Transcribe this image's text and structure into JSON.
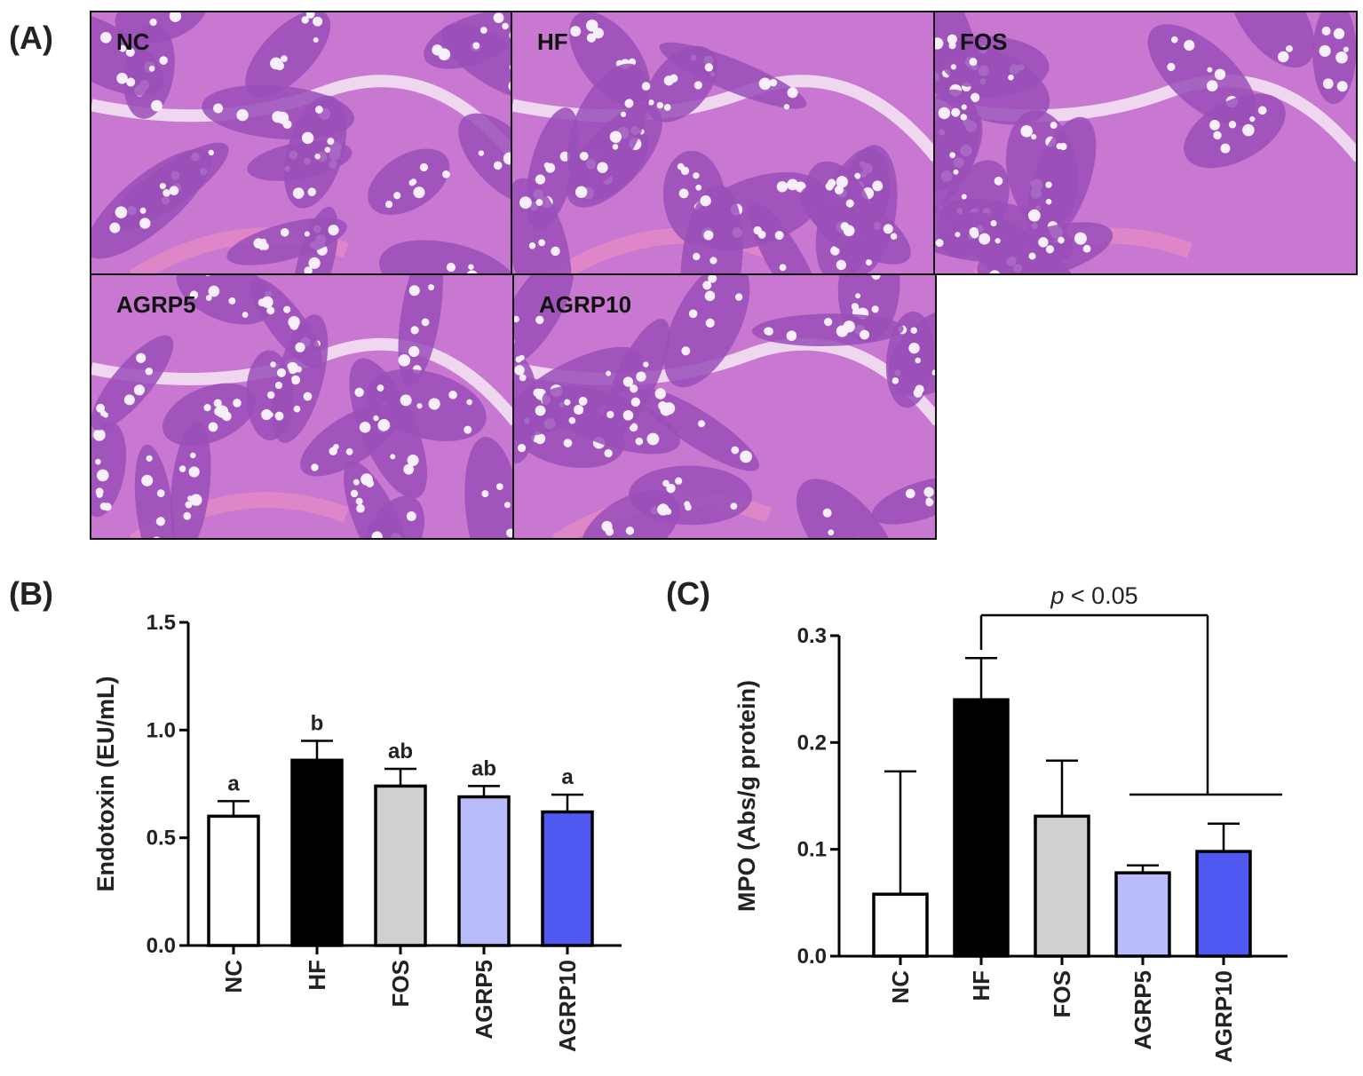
{
  "panels": {
    "a": "(A)",
    "b": "(B)",
    "c": "(C)"
  },
  "histology": {
    "tiles": [
      {
        "label": "NC"
      },
      {
        "label": "HF"
      },
      {
        "label": "FOS"
      },
      {
        "label": "AGRP5"
      },
      {
        "label": "AGRP10"
      }
    ],
    "stain_colors": {
      "tissue": "#c878d0",
      "crypt": "#9a4fb8",
      "goblet": "#f6eefa",
      "lumen": "#f4e8f4",
      "muscle": "#e88cc4"
    }
  },
  "chart_data": [
    {
      "type": "bar",
      "panel": "(B)",
      "categories": [
        "NC",
        "HF",
        "FOS",
        "AGRP5",
        "AGRP10"
      ],
      "values": [
        0.6,
        0.86,
        0.74,
        0.69,
        0.62
      ],
      "errors": [
        0.07,
        0.09,
        0.08,
        0.05,
        0.08
      ],
      "letters": [
        "a",
        "b",
        "ab",
        "ab",
        "a"
      ],
      "colors": [
        "#ffffff",
        "#000000",
        "#d0d0d0",
        "#b8bcfa",
        "#5058f2"
      ],
      "ylabel": "Endotoxin (EU/mL)",
      "xlabel": "",
      "ylim": [
        0,
        1.5
      ],
      "yticks": [
        "0.0",
        "0.5",
        "1.0",
        "1.5"
      ]
    },
    {
      "type": "bar",
      "panel": "(C)",
      "categories": [
        "NC",
        "HF",
        "FOS",
        "AGRP5",
        "AGRP10"
      ],
      "values": [
        0.058,
        0.24,
        0.131,
        0.078,
        0.098
      ],
      "errors": [
        0.115,
        0.039,
        0.052,
        0.007,
        0.026
      ],
      "colors": [
        "#ffffff",
        "#000000",
        "#d0d0d0",
        "#b8bcfa",
        "#5058f2"
      ],
      "ylabel": "MPO (Abs/g protein)",
      "xlabel": "",
      "ylim": [
        0,
        0.3
      ],
      "yticks": [
        "0.0",
        "0.1",
        "0.2",
        "0.3"
      ],
      "annotation": {
        "p_symbol": "p",
        "p_text": " < 0.05"
      }
    }
  ]
}
